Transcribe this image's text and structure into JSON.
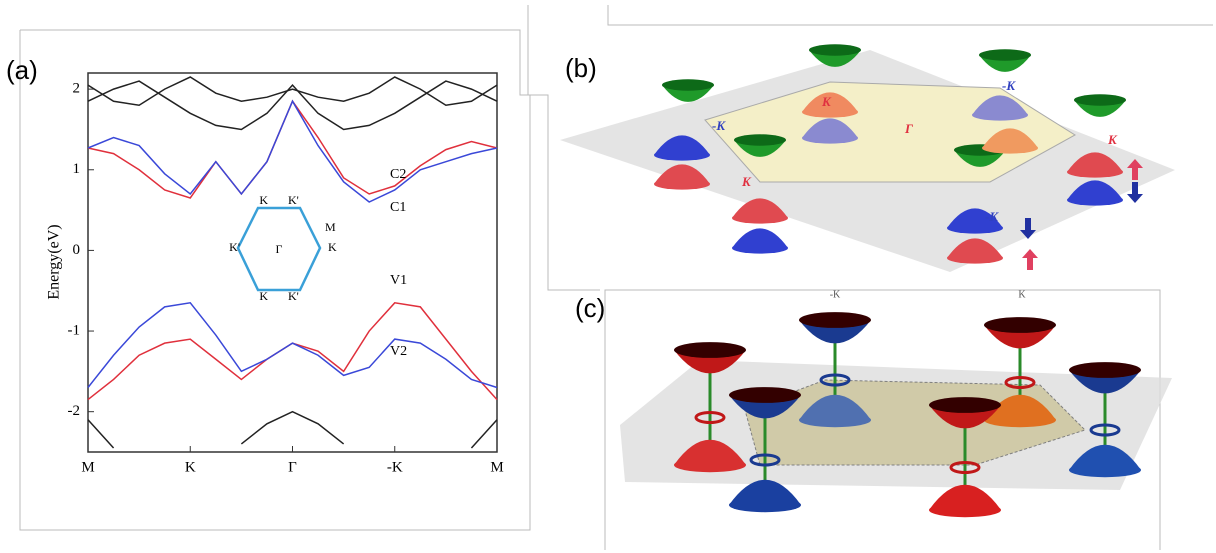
{
  "chart_data": {
    "type": "line",
    "ylabel": "Energy(eV)",
    "x": [
      0,
      0.25,
      0.5,
      0.75,
      1,
      1.25,
      1.5,
      1.75,
      2,
      2.25,
      2.5,
      2.75,
      3,
      3.25,
      3.5,
      3.75,
      4
    ],
    "xlim": [
      0,
      4
    ],
    "ylim": [
      -2.5,
      2.2
    ],
    "xticks": [
      {
        "value": 0,
        "label": "M"
      },
      {
        "value": 1,
        "label": "K"
      },
      {
        "value": 2,
        "label": "Γ"
      },
      {
        "value": 3,
        "label": "-K"
      },
      {
        "value": 4,
        "label": "M"
      }
    ],
    "yticks": [
      2,
      1,
      0,
      -1,
      -2
    ],
    "series": [
      {
        "name": "C2",
        "color": "#e0303c",
        "values": [
          1.27,
          1.2,
          1.0,
          0.75,
          0.65,
          1.1,
          0.7,
          1.1,
          1.85,
          1.4,
          0.9,
          0.7,
          0.8,
          1.05,
          1.25,
          1.35,
          1.27
        ]
      },
      {
        "name": "C1",
        "color": "#3a48d8",
        "values": [
          1.27,
          1.4,
          1.3,
          0.95,
          0.7,
          1.1,
          0.7,
          1.1,
          1.85,
          1.3,
          0.85,
          0.6,
          0.75,
          1.0,
          1.1,
          1.2,
          1.27
        ]
      },
      {
        "name": "V1",
        "color": "#e0303c",
        "values": [
          -1.85,
          -1.6,
          -1.3,
          -1.15,
          -1.1,
          -1.35,
          -1.6,
          -1.35,
          -1.15,
          -1.25,
          -1.5,
          -1.0,
          -0.65,
          -0.7,
          -1.1,
          -1.5,
          -1.85
        ]
      },
      {
        "name": "V2",
        "color": "#3a48d8",
        "values": [
          -1.7,
          -1.3,
          -0.95,
          -0.7,
          -0.65,
          -1.05,
          -1.5,
          -1.35,
          -1.15,
          -1.3,
          -1.55,
          -1.45,
          -1.1,
          -1.15,
          -1.35,
          -1.6,
          -1.7
        ]
      },
      {
        "color": "#222222",
        "values": [
          1.85,
          2.0,
          2.1,
          1.9,
          1.7,
          1.55,
          1.5,
          1.7,
          2.05,
          1.7,
          1.5,
          1.55,
          1.7,
          1.9,
          2.1,
          2.0,
          1.85
        ]
      },
      {
        "color": "#222222",
        "values": [
          2.05,
          1.85,
          1.8,
          2.0,
          2.15,
          1.95,
          1.85,
          1.9,
          2.0,
          1.9,
          1.85,
          1.95,
          2.15,
          2.0,
          1.8,
          1.85,
          2.05
        ]
      },
      {
        "color": "#222222",
        "values": [
          -2.1,
          -2.45,
          null,
          null,
          null,
          null,
          -2.4,
          -2.15,
          -2.0,
          -2.15,
          -2.4,
          null,
          null,
          null,
          null,
          -2.45,
          -2.1
        ]
      }
    ],
    "inset": {
      "center": "Γ",
      "vertices": [
        "K",
        "K'",
        "K",
        "K'",
        "K",
        "K'"
      ],
      "edge": "M"
    }
  },
  "panel_labels": [
    "(a)",
    "(b)",
    "(c)"
  ],
  "panel_b": {
    "labels": [
      "K",
      "-K",
      "Γ",
      "-K",
      "K",
      "K",
      "-K"
    ]
  },
  "panel_c": {
    "labels": [
      "-K",
      "K"
    ]
  }
}
